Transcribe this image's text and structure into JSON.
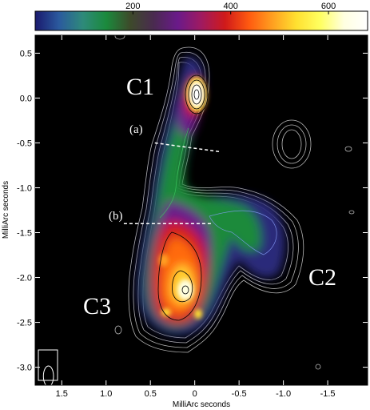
{
  "chart_data": {
    "type": "heatmap",
    "title": "",
    "xlabel": "MilliArc seconds",
    "ylabel": "MilliArc seconds",
    "xlim": [
      1.8,
      -1.95
    ],
    "ylim": [
      -3.2,
      0.7
    ],
    "x_ticks": [
      1.5,
      1.0,
      0.5,
      0.0,
      -0.5,
      -1.0,
      -1.5
    ],
    "x_tick_labels": [
      "1.5",
      "1.0",
      "0.5",
      "0",
      "-0.5",
      "-1.0",
      "-1.5"
    ],
    "y_ticks": [
      0.5,
      0.0,
      -0.5,
      -1.0,
      -1.5,
      -2.0,
      -2.5,
      -3.0
    ],
    "y_tick_labels": [
      "0.5",
      "0.0",
      "-0.5",
      "-1.0",
      "-1.5",
      "-2.0",
      "-2.5",
      "-3.0"
    ],
    "colorbar": {
      "range": [
        0,
        680
      ],
      "ticks": [
        200,
        400,
        600
      ],
      "tick_labels": [
        "200",
        "400",
        "600"
      ],
      "palette": [
        "#1a1a6e",
        "#2b5a9e",
        "#2e8a7a",
        "#1b8a3c",
        "#3d4a2a",
        "#4a2a50",
        "#6a1a8a",
        "#a01a60",
        "#d01a1a",
        "#ff5a10",
        "#ffa020",
        "#ffe030",
        "#ffff60",
        "#ffffe0",
        "#ffffff"
      ]
    },
    "components": [
      {
        "label": "C1",
        "x": 0.0,
        "y": 0.0
      },
      {
        "label": "C2",
        "x": -1.45,
        "y": -2.05
      },
      {
        "label": "C3",
        "x": 0.9,
        "y": -2.35
      }
    ],
    "slices": [
      {
        "label": "(a)",
        "x1": 0.45,
        "y1": -0.5,
        "x2": -0.3,
        "y2": -0.6
      },
      {
        "label": "(b)",
        "x1": 0.8,
        "y1": -1.4,
        "x2": -0.2,
        "y2": -1.4
      }
    ],
    "beam": {
      "x": 1.65,
      "y": -3.1,
      "major": 0.16,
      "minor": 0.08
    }
  }
}
